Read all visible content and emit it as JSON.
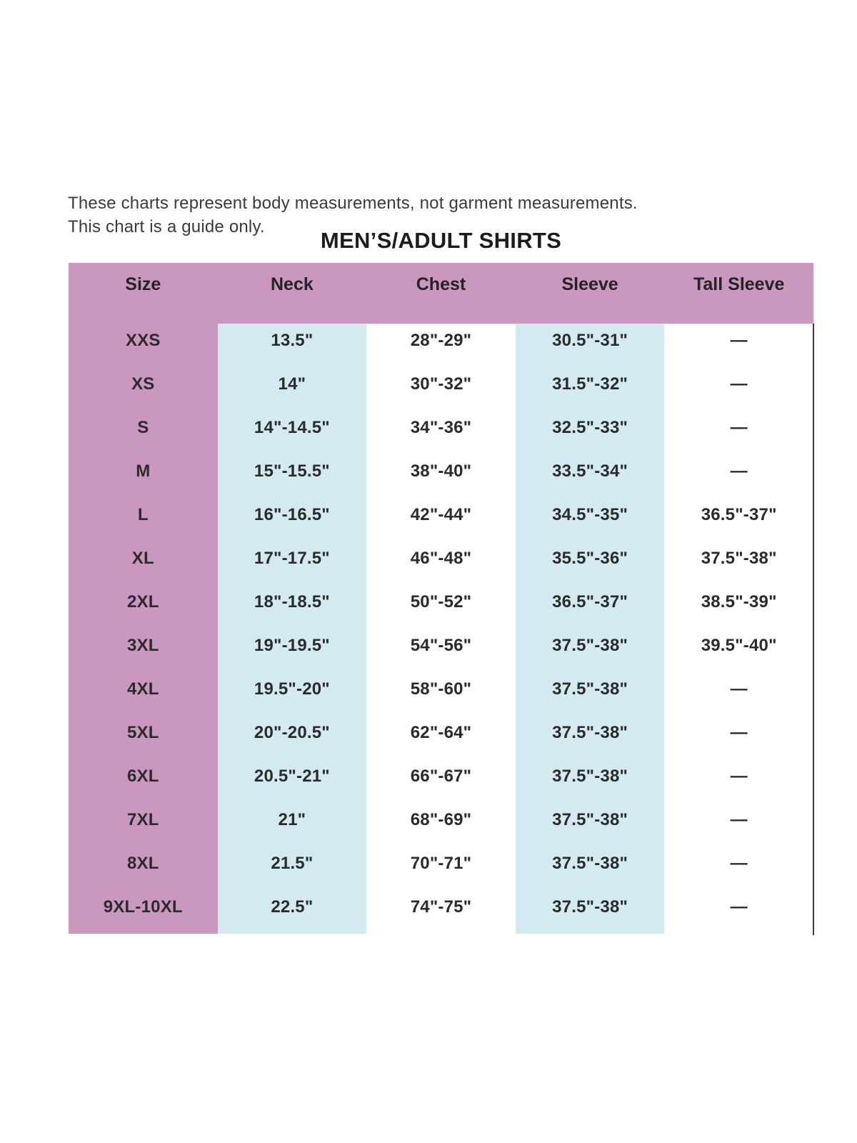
{
  "disclaimer": {
    "line1": "These charts represent body measurements, not garment measurements.",
    "line2": "This chart is a guide only."
  },
  "title": "MEN’S/ADULT SHIRTS",
  "table": {
    "columns": [
      "Size",
      "Neck",
      "Chest",
      "Sleeve",
      "Tall Sleeve"
    ],
    "rows": [
      {
        "size": "XXS",
        "neck": "13.5\"",
        "chest": "28\"-29\"",
        "sleeve": "30.5\"-31\"",
        "tall_sleeve": "—"
      },
      {
        "size": "XS",
        "neck": "14\"",
        "chest": "30\"-32\"",
        "sleeve": "31.5\"-32\"",
        "tall_sleeve": "—"
      },
      {
        "size": "S",
        "neck": "14\"-14.5\"",
        "chest": "34\"-36\"",
        "sleeve": "32.5\"-33\"",
        "tall_sleeve": "—"
      },
      {
        "size": "M",
        "neck": "15\"-15.5\"",
        "chest": "38\"-40\"",
        "sleeve": "33.5\"-34\"",
        "tall_sleeve": "—"
      },
      {
        "size": "L",
        "neck": "16\"-16.5\"",
        "chest": "42\"-44\"",
        "sleeve": "34.5\"-35\"",
        "tall_sleeve": "36.5\"-37\""
      },
      {
        "size": "XL",
        "neck": "17\"-17.5\"",
        "chest": "46\"-48\"",
        "sleeve": "35.5\"-36\"",
        "tall_sleeve": "37.5\"-38\""
      },
      {
        "size": "2XL",
        "neck": "18\"-18.5\"",
        "chest": "50\"-52\"",
        "sleeve": "36.5\"-37\"",
        "tall_sleeve": "38.5\"-39\""
      },
      {
        "size": "3XL",
        "neck": "19\"-19.5\"",
        "chest": "54\"-56\"",
        "sleeve": "37.5\"-38\"",
        "tall_sleeve": "39.5\"-40\""
      },
      {
        "size": "4XL",
        "neck": "19.5\"-20\"",
        "chest": "58\"-60\"",
        "sleeve": "37.5\"-38\"",
        "tall_sleeve": "—"
      },
      {
        "size": "5XL",
        "neck": "20\"-20.5\"",
        "chest": "62\"-64\"",
        "sleeve": "37.5\"-38\"",
        "tall_sleeve": "—"
      },
      {
        "size": "6XL",
        "neck": "20.5\"-21\"",
        "chest": "66\"-67\"",
        "sleeve": "37.5\"-38\"",
        "tall_sleeve": "—"
      },
      {
        "size": "7XL",
        "neck": "21\"",
        "chest": "68\"-69\"",
        "sleeve": "37.5\"-38\"",
        "tall_sleeve": "—"
      },
      {
        "size": "8XL",
        "neck": "21.5\"",
        "chest": "70\"-71\"",
        "sleeve": "37.5\"-38\"",
        "tall_sleeve": "—"
      },
      {
        "size": "9XL-10XL",
        "neck": "22.5\"",
        "chest": "74\"-75\"",
        "sleeve": "37.5\"-38\"",
        "tall_sleeve": "—"
      }
    ]
  },
  "colors": {
    "header_and_size_column": "#ca97bf",
    "neck_and_sleeve_columns": "#d2eaf0",
    "body_text": "#2b2b2b",
    "right_rule": "#3c3c3c"
  }
}
